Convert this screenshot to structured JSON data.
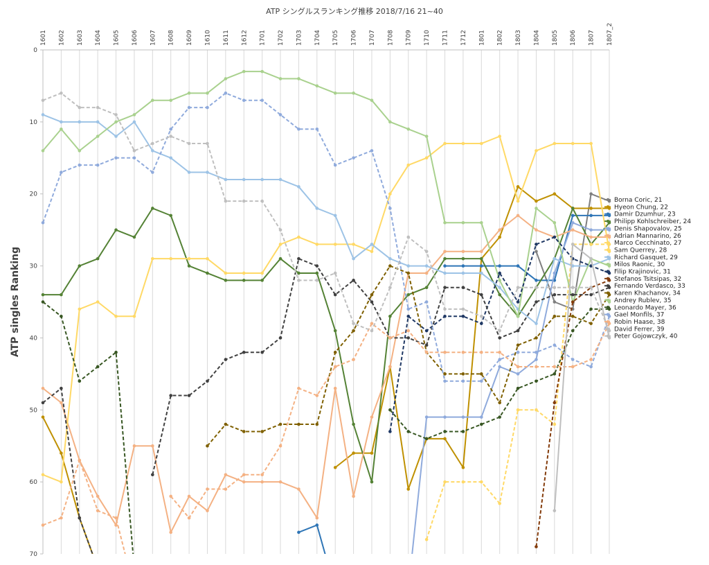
{
  "chart_data": {
    "type": "line",
    "title": "ATP シングルスランキング推移 2018/7/16 21~40",
    "ylabel": "ATP singles Ranking",
    "xlabel": "",
    "ylim": [
      0,
      70
    ],
    "y_inverted": true,
    "y_ticks": [
      0,
      10,
      20,
      30,
      40,
      50,
      60,
      70
    ],
    "x_axis_position": "top",
    "grid": "vertical",
    "legend_position": "right",
    "categories": [
      "1601",
      "1602",
      "1603",
      "1604",
      "1605",
      "1606",
      "1607",
      "1608",
      "1609",
      "1610",
      "1611",
      "1612",
      "1701",
      "1702",
      "1703",
      "1704",
      "1705",
      "1706",
      "1707",
      "1708",
      "1709",
      "1710",
      "1711",
      "1712",
      "1801",
      "1802",
      "1803",
      "1804",
      "1805",
      "1806",
      "1807",
      "1807_2"
    ],
    "series": [
      {
        "name": "Borna Coric, 21",
        "color": "#7f7f7f",
        "dash": "solid",
        "values": [
          null,
          null,
          null,
          null,
          null,
          null,
          null,
          null,
          null,
          null,
          null,
          null,
          null,
          null,
          null,
          null,
          null,
          null,
          null,
          null,
          null,
          null,
          null,
          null,
          null,
          null,
          null,
          28,
          35,
          36,
          20,
          21
        ]
      },
      {
        "name": "Hyeon Chung, 22",
        "color": "#bf9000",
        "dash": "solid",
        "values": [
          51,
          56,
          65,
          72,
          null,
          null,
          null,
          null,
          null,
          null,
          null,
          null,
          null,
          null,
          null,
          null,
          58,
          56,
          56,
          44,
          61,
          54,
          54,
          58,
          29,
          26,
          19,
          21,
          20,
          22,
          22,
          22
        ]
      },
      {
        "name": "Damir Dzumhur, 23",
        "color": "#2e75b6",
        "dash": "solid",
        "values": [
          null,
          null,
          null,
          null,
          null,
          null,
          null,
          null,
          null,
          null,
          null,
          null,
          null,
          null,
          67,
          66,
          75,
          null,
          null,
          null,
          null,
          null,
          30,
          30,
          30,
          30,
          30,
          32,
          32,
          23,
          23,
          23
        ]
      },
      {
        "name": "Philipp Kohlschreiber, 24",
        "color": "#548235",
        "dash": "solid",
        "values": [
          34,
          34,
          30,
          29,
          25,
          26,
          22,
          23,
          30,
          31,
          32,
          32,
          32,
          29,
          31,
          31,
          39,
          52,
          60,
          37,
          34,
          33,
          29,
          29,
          29,
          34,
          37,
          33,
          29,
          22,
          27,
          24
        ]
      },
      {
        "name": "Denis Shapovalov, 25",
        "color": "#8faadc",
        "dash": "solid",
        "values": [
          null,
          null,
          null,
          null,
          null,
          null,
          null,
          null,
          null,
          null,
          null,
          null,
          null,
          null,
          null,
          null,
          null,
          null,
          null,
          null,
          75,
          51,
          51,
          51,
          51,
          44,
          45,
          43,
          31,
          24,
          25,
          25
        ]
      },
      {
        "name": "Adrian Mannarino, 26",
        "color": "#f4b183",
        "dash": "solid",
        "values": [
          47,
          49,
          57,
          62,
          66,
          55,
          55,
          67,
          62,
          64,
          59,
          60,
          60,
          60,
          61,
          65,
          47,
          62,
          51,
          44,
          31,
          31,
          28,
          28,
          28,
          25,
          23,
          25,
          26,
          25,
          26,
          26
        ]
      },
      {
        "name": "Marco Cecchinato, 27",
        "color": "#ffd966",
        "dash": "dash",
        "values": [
          null,
          null,
          null,
          null,
          null,
          null,
          null,
          null,
          null,
          null,
          null,
          null,
          null,
          null,
          null,
          null,
          null,
          null,
          null,
          null,
          null,
          68,
          60,
          60,
          60,
          63,
          50,
          50,
          52,
          27,
          27,
          27
        ]
      },
      {
        "name": "Sam Querrey, 28",
        "color": "#ffd966",
        "dash": "solid",
        "values": [
          59,
          60,
          36,
          35,
          37,
          37,
          29,
          29,
          29,
          29,
          31,
          31,
          31,
          27,
          26,
          27,
          27,
          27,
          28,
          20,
          16,
          15,
          13,
          13,
          13,
          12,
          21,
          14,
          13,
          13,
          13,
          28
        ]
      },
      {
        "name": "Richard Gasquet, 29",
        "color": "#9dc3e6",
        "dash": "solid",
        "values": [
          9,
          10,
          10,
          10,
          12,
          10,
          14,
          15,
          17,
          17,
          18,
          18,
          18,
          18,
          19,
          22,
          23,
          29,
          27,
          29,
          30,
          30,
          31,
          31,
          31,
          33,
          36,
          38,
          29,
          30,
          30,
          29
        ]
      },
      {
        "name": "Milos Raonic, 30",
        "color": "#a9d18e",
        "dash": "solid",
        "values": [
          14,
          11,
          14,
          12,
          10,
          9,
          7,
          7,
          6,
          6,
          4,
          3,
          3,
          4,
          4,
          5,
          6,
          6,
          7,
          10,
          11,
          12,
          24,
          24,
          24,
          32,
          37,
          22,
          24,
          35,
          29,
          30
        ]
      },
      {
        "name": "Filip Krajinovic, 31",
        "color": "#1f3864",
        "dash": "dash",
        "values": [
          null,
          null,
          null,
          null,
          null,
          null,
          null,
          null,
          null,
          null,
          null,
          null,
          null,
          null,
          null,
          null,
          null,
          null,
          null,
          53,
          37,
          39,
          37,
          37,
          38,
          31,
          35,
          27,
          26,
          29,
          30,
          31
        ]
      },
      {
        "name": "Stefanos Tsitsipas, 32",
        "color": "#843c0c",
        "dash": "dash",
        "values": [
          null,
          null,
          null,
          null,
          null,
          null,
          null,
          null,
          null,
          null,
          null,
          null,
          null,
          null,
          null,
          null,
          null,
          null,
          null,
          null,
          null,
          null,
          null,
          null,
          null,
          null,
          null,
          69,
          49,
          35,
          33,
          32
        ]
      },
      {
        "name": "Fernando Verdasco, 33",
        "color": "#404040",
        "dash": "dash",
        "values": [
          49,
          47,
          65,
          72,
          null,
          null,
          59,
          48,
          48,
          46,
          43,
          42,
          42,
          40,
          29,
          30,
          34,
          32,
          35,
          40,
          40,
          41,
          33,
          33,
          34,
          40,
          39,
          35,
          34,
          34,
          34,
          33
        ]
      },
      {
        "name": "Karen Khachanov, 34",
        "color": "#7f6000",
        "dash": "dash",
        "values": [
          null,
          null,
          null,
          null,
          null,
          null,
          null,
          null,
          null,
          55,
          52,
          53,
          53,
          52,
          52,
          52,
          42,
          39,
          34,
          30,
          31,
          42,
          45,
          45,
          45,
          49,
          41,
          40,
          37,
          37,
          38,
          34
        ]
      },
      {
        "name": "Andrey Rublev, 35",
        "color": "#a9d18e",
        "dash": "solid",
        "values": [
          null,
          null,
          null,
          null,
          null,
          null,
          null,
          null,
          null,
          null,
          null,
          null,
          null,
          null,
          null,
          null,
          null,
          null,
          null,
          null,
          null,
          null,
          null,
          null,
          null,
          null,
          null,
          null,
          null,
          null,
          null,
          35
        ]
      },
      {
        "name": "Leonardo Mayer, 36",
        "color": "#385723",
        "dash": "dash",
        "values": [
          35,
          37,
          46,
          44,
          42,
          72,
          null,
          null,
          null,
          null,
          null,
          null,
          null,
          null,
          null,
          null,
          null,
          null,
          null,
          50,
          53,
          54,
          53,
          53,
          52,
          51,
          47,
          46,
          45,
          39,
          36,
          36
        ]
      },
      {
        "name": "Gael Monfils, 37",
        "color": "#8faadc",
        "dash": "dash",
        "values": [
          24,
          17,
          16,
          16,
          15,
          15,
          17,
          11,
          8,
          8,
          6,
          7,
          7,
          9,
          11,
          11,
          16,
          15,
          14,
          22,
          36,
          35,
          46,
          46,
          46,
          43,
          42,
          42,
          41,
          43,
          44,
          37
        ]
      },
      {
        "name": "Robin Haase, 38",
        "color": "#f4b183",
        "dash": "dash",
        "values": [
          66,
          65,
          57,
          64,
          65,
          75,
          null,
          62,
          65,
          61,
          61,
          59,
          59,
          55,
          47,
          48,
          44,
          43,
          38,
          40,
          39,
          42,
          42,
          42,
          42,
          42,
          44,
          44,
          44,
          44,
          43,
          38
        ]
      },
      {
        "name": "David Ferrer, 39",
        "color": "#bfbfbf",
        "dash": "dash",
        "values": [
          7,
          6,
          8,
          8,
          9,
          14,
          13,
          12,
          13,
          13,
          21,
          21,
          21,
          25,
          32,
          32,
          31,
          38,
          39,
          33,
          26,
          28,
          36,
          36,
          37,
          39,
          33,
          33,
          33,
          33,
          33,
          39
        ]
      },
      {
        "name": "Peter Gojowczyk, 40",
        "color": "#bfbfbf",
        "dash": "solid",
        "values": [
          null,
          null,
          null,
          null,
          null,
          null,
          null,
          null,
          null,
          null,
          null,
          null,
          null,
          null,
          null,
          null,
          null,
          null,
          null,
          null,
          null,
          null,
          null,
          null,
          null,
          null,
          null,
          null,
          64,
          27,
          29,
          40
        ]
      }
    ]
  }
}
